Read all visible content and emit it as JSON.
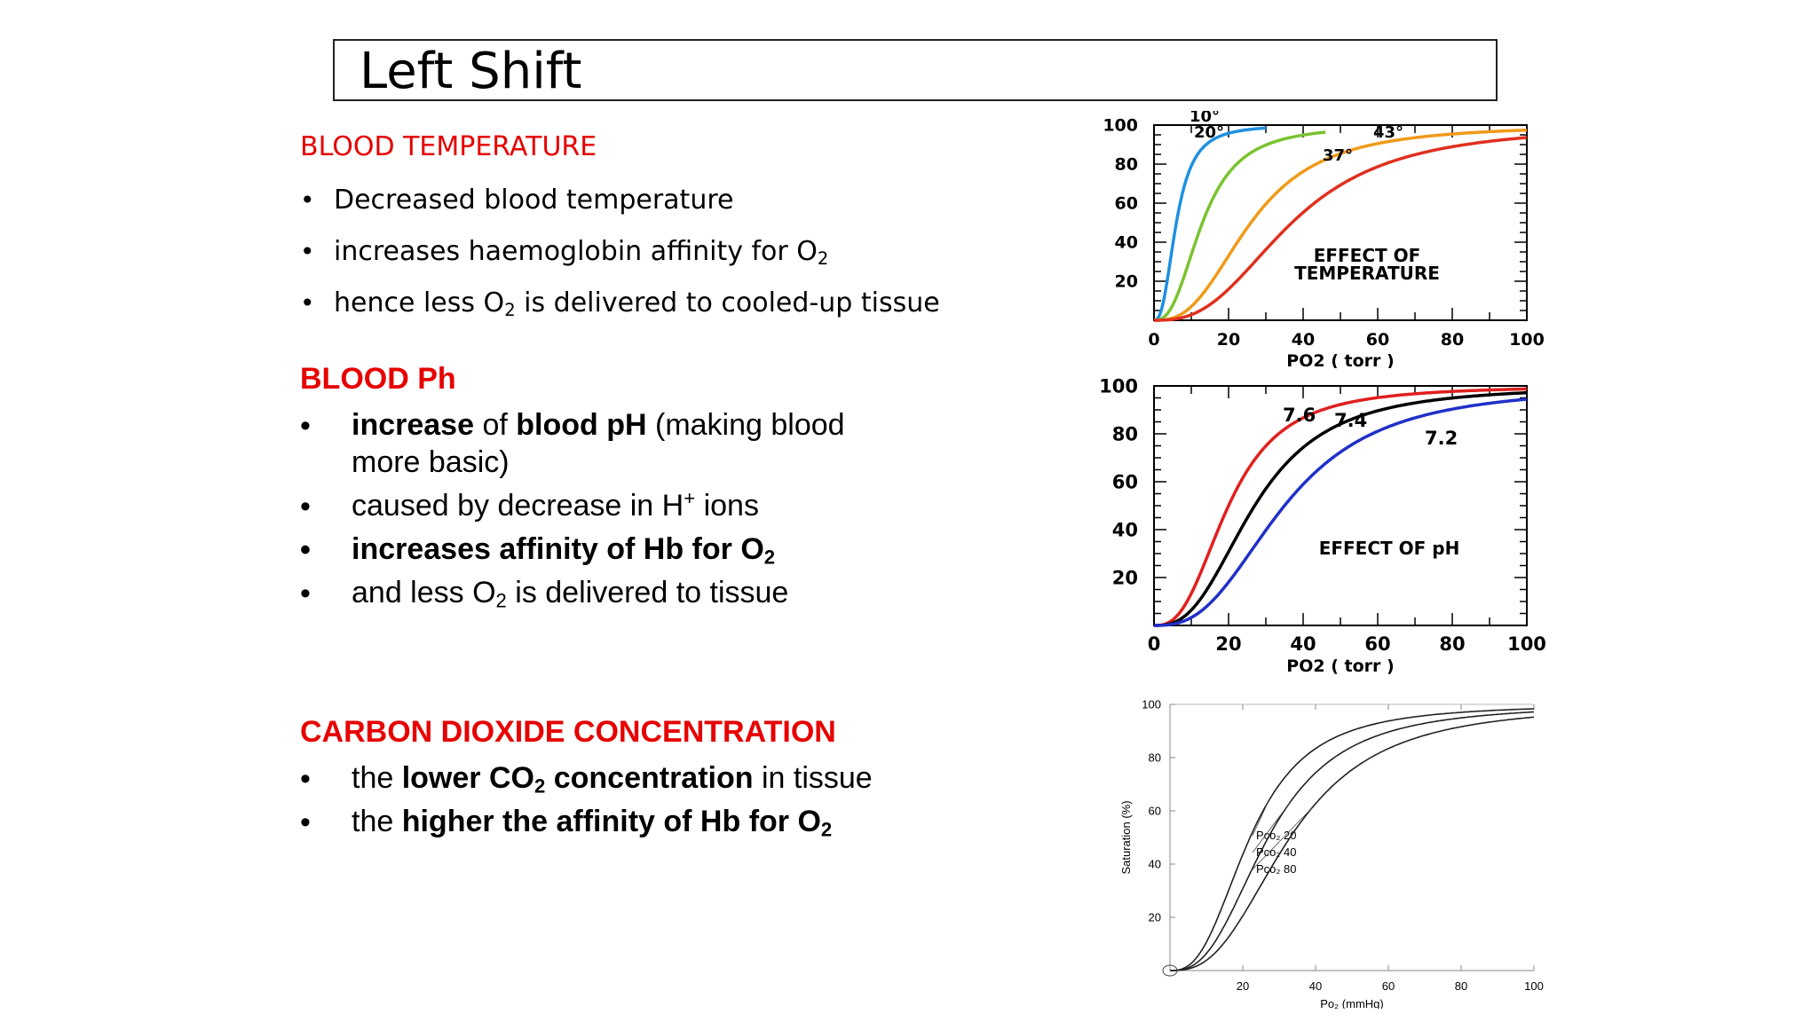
{
  "title": "Left Shift",
  "temperature": {
    "heading": "BLOOD TEMPERATURE",
    "bullets": [
      {
        "text": "Decreased blood temperature"
      },
      {
        "pre": "increases haemoglobin affinity for O",
        "sub": "2"
      },
      {
        "pre": "hence less O",
        "sub": "2",
        "post": " is delivered to cooled-up tissue"
      }
    ]
  },
  "ph": {
    "heading": "BLOOD Ph",
    "b1": {
      "a": "increase",
      "b": " of ",
      "c": "blood pH",
      "d": " (making blood more basic)"
    },
    "b2": {
      "pre": "caused by decrease in H",
      "sup": "+",
      "post": " ions"
    },
    "b3": {
      "pre": "increases affinity of Hb for O",
      "sub": "2"
    },
    "b4": {
      "pre": "and less O",
      "sub": "2",
      "post": " is delivered to tissue"
    }
  },
  "co2": {
    "heading": "CARBON DIOXIDE CONCENTRATION",
    "b1": {
      "pre": "the ",
      "bold": "lower CO",
      "sub": "2",
      "bold2": " concentration",
      "post": " in tissue"
    },
    "b2": {
      "pre": "the ",
      "bold": "higher the affinity of Hb for O",
      "sub": "2"
    }
  },
  "chart_data": [
    {
      "type": "line",
      "title": "EFFECT OF TEMPERATURE",
      "xlabel": "PO2 ( torr )",
      "ylabel": "",
      "xlim": [
        0,
        100
      ],
      "ylim": [
        0,
        100
      ],
      "xticks": [
        "0",
        "20",
        "40",
        "60",
        "80",
        "100"
      ],
      "yticks": [
        "20",
        "40",
        "60",
        "80",
        "100"
      ],
      "series": [
        {
          "name": "10°",
          "color": "#1e90e0",
          "p50": 6,
          "n": 2.6,
          "xmax": 30
        },
        {
          "name": "20°",
          "color": "#7ac330",
          "p50": 13,
          "n": 2.6,
          "xmax": 46
        },
        {
          "name": "37°",
          "color": "#f09a1a",
          "p50": 26,
          "n": 2.7,
          "xmax": 100
        },
        {
          "name": "43°",
          "color": "#e0301e",
          "p50": 37,
          "n": 2.7,
          "xmax": 100
        }
      ]
    },
    {
      "type": "line",
      "title": "EFFECT OF pH",
      "xlabel": "PO2 ( torr )",
      "ylabel": "",
      "xlim": [
        0,
        100
      ],
      "ylim": [
        0,
        100
      ],
      "xticks": [
        "0",
        "20",
        "40",
        "60",
        "80",
        "100"
      ],
      "yticks": [
        "20",
        "40",
        "60",
        "80",
        "100"
      ],
      "series": [
        {
          "name": "7.6",
          "color": "#e0201e",
          "p50": 20,
          "n": 2.7,
          "xmax": 100
        },
        {
          "name": "7.4",
          "color": "#000000",
          "p50": 27,
          "n": 2.7,
          "xmax": 100
        },
        {
          "name": "7.2",
          "color": "#2030c8",
          "p50": 35,
          "n": 2.7,
          "xmax": 100
        }
      ]
    },
    {
      "type": "line",
      "title": "",
      "xlabel": "Po₂ (mmHg)",
      "ylabel": "Saturation (%)",
      "xlim": [
        0,
        100
      ],
      "ylim": [
        0,
        100
      ],
      "xticks": [
        "20",
        "40",
        "60",
        "80",
        "100"
      ],
      "yticks": [
        "20",
        "40",
        "60",
        "80",
        "100"
      ],
      "series": [
        {
          "name": "Pco₂ 20",
          "color": "#222222",
          "p50": 22,
          "n": 2.7,
          "xmax": 100
        },
        {
          "name": "Pco₂ 40",
          "color": "#222222",
          "p50": 27,
          "n": 2.7,
          "xmax": 100
        },
        {
          "name": "Pco₂ 80",
          "color": "#222222",
          "p50": 33,
          "n": 2.7,
          "xmax": 100
        }
      ]
    }
  ]
}
